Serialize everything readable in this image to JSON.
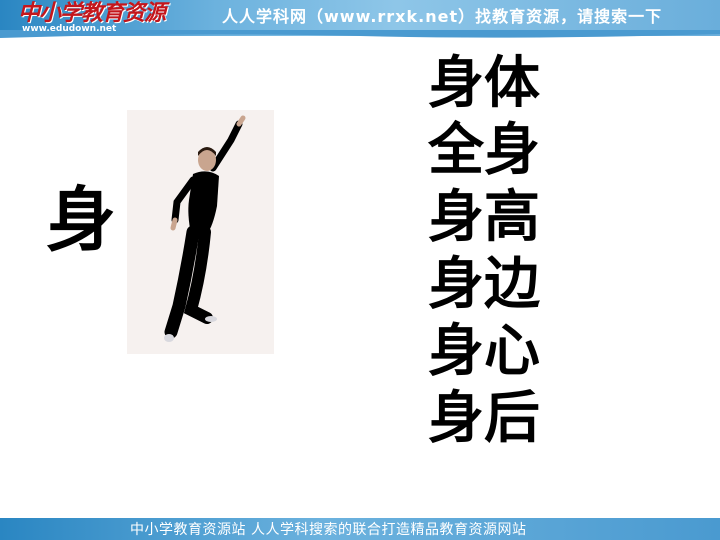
{
  "header": {
    "logo_text": "中小学教育资源",
    "logo_url": "www.edudown.net",
    "slogan": "人人学科网（www.rrxk.net）找教育资源，请搜索一下"
  },
  "lesson": {
    "main_character": "身",
    "words": [
      "身体",
      "全身",
      "身高",
      "身边",
      "身心",
      "身后"
    ]
  },
  "footer": {
    "text": "中小学教育资源站 人人学科搜索的联合打造精品教育资源网站"
  },
  "colors": {
    "header_blue": "#2a86c2",
    "logo_red": "#c4161c",
    "text": "#000000"
  }
}
